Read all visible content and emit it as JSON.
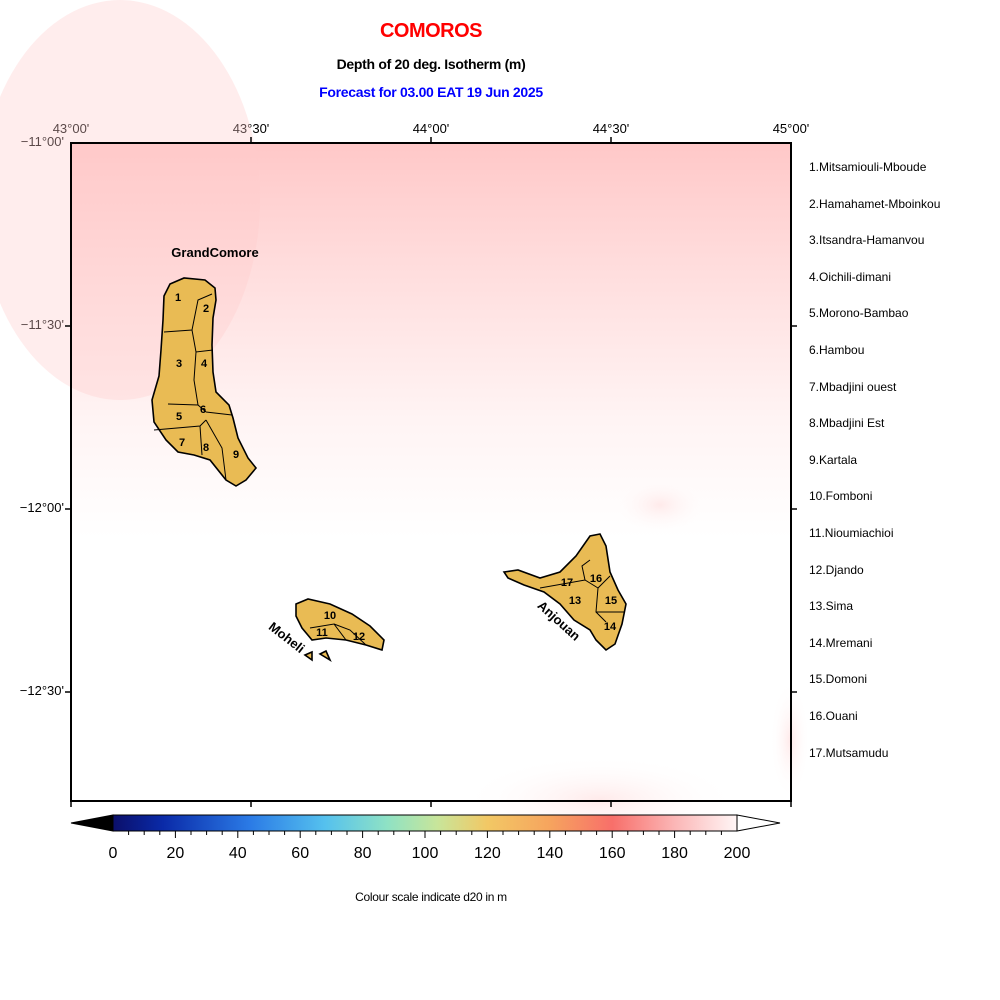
{
  "title": "COMOROS",
  "subtitle": "Depth of 20 deg. Isotherm (m)",
  "forecast": "Forecast for  03.00 EAT 19 Jun 2025",
  "colors": {
    "title": "#ff0000",
    "forecast": "#0000ff",
    "land": "#e9bb54",
    "background_top": "#ffcccc"
  },
  "axes": {
    "lon_ticks": [
      "43°00'",
      "43°30'",
      "44°00'",
      "44°30'",
      "45°00'"
    ],
    "lat_ticks": [
      "−11°00'",
      "−11°30'",
      "−12°00'",
      "−12°30'"
    ],
    "lon_range": [
      43.0,
      45.0
    ],
    "lat_range": [
      -11.0,
      -12.8
    ]
  },
  "island_labels": {
    "grand_comore": "GrandComore",
    "moheli": "Moheli",
    "anjouan": "Anjouan"
  },
  "regions": [
    "1.Mitsamiouli-Mboude",
    "2.Hamahamet-Mboinkou",
    "3.Itsandra-Hamanvou",
    "4.Oichili-dimani",
    "5.Morono-Bambao",
    "6.Hambou",
    "7.Mbadjini ouest",
    "8.Mbadjini Est",
    "9.Kartala",
    "10.Fomboni",
    "11.Nioumiachioi",
    "12.Djando",
    "13.Sima",
    "14.Mremani",
    "15.Domoni",
    "16.Ouani",
    "17.Mutsamudu"
  ],
  "region_numbers": [
    "1",
    "2",
    "3",
    "4",
    "5",
    "6",
    "7",
    "8",
    "9",
    "10",
    "11",
    "12",
    "13",
    "14",
    "15",
    "16",
    "17"
  ],
  "colorbar": {
    "ticks": [
      "0",
      "20",
      "40",
      "60",
      "80",
      "100",
      "120",
      "140",
      "160",
      "180",
      "200"
    ],
    "range": [
      0,
      200
    ],
    "caption": "Colour scale indicate d20 in m"
  }
}
